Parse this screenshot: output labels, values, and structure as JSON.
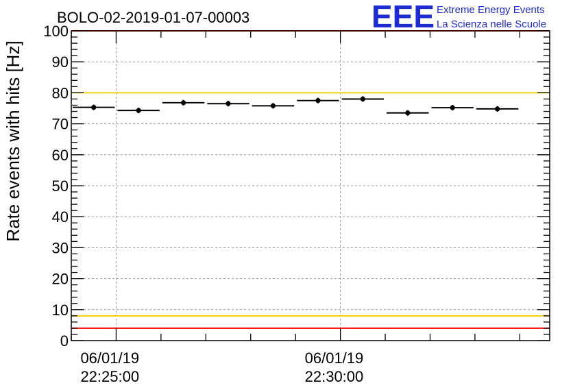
{
  "chart_data": {
    "type": "scatter",
    "title": "BOLO-02-2019-01-07-00003",
    "ylabel": "Rate events with hits [Hz]",
    "xlabel": "",
    "x_axis": {
      "unit": "seconds",
      "range": [
        0,
        640
      ],
      "major_ticks": [
        {
          "x": 60,
          "date_label": "06/01/19",
          "time_label": "22:25:00"
        },
        {
          "x": 360,
          "date_label": "06/01/19",
          "time_label": "22:30:00"
        }
      ],
      "minor_ticks": [
        0,
        60,
        120,
        180,
        240,
        300,
        360,
        420,
        480,
        540,
        600
      ]
    },
    "y_axis": {
      "range": [
        0,
        100
      ],
      "ticks": [
        0,
        10,
        20,
        30,
        40,
        50,
        60,
        70,
        80,
        90,
        100
      ]
    },
    "grid": true,
    "points": [
      {
        "x": 30,
        "y": 75.3,
        "xerr": 30,
        "yerr": 0.9
      },
      {
        "x": 90,
        "y": 74.3,
        "xerr": 30,
        "yerr": 0.9
      },
      {
        "x": 150,
        "y": 76.8,
        "xerr": 30,
        "yerr": 0.9
      },
      {
        "x": 210,
        "y": 76.5,
        "xerr": 30,
        "yerr": 0.9
      },
      {
        "x": 270,
        "y": 75.8,
        "xerr": 30,
        "yerr": 0.9
      },
      {
        "x": 330,
        "y": 77.5,
        "xerr": 30,
        "yerr": 0.9
      },
      {
        "x": 390,
        "y": 78.0,
        "xerr": 30,
        "yerr": 0.9
      },
      {
        "x": 450,
        "y": 73.5,
        "xerr": 30,
        "yerr": 0.9
      },
      {
        "x": 510,
        "y": 75.2,
        "xerr": 30,
        "yerr": 0.9
      },
      {
        "x": 570,
        "y": 74.8,
        "xerr": 30,
        "yerr": 0.9
      }
    ],
    "reference_lines": [
      {
        "y": 100,
        "color": "#ff0000"
      },
      {
        "y": 80,
        "color": "#f5d000"
      },
      {
        "y": 8,
        "color": "#f5d000"
      },
      {
        "y": 4,
        "color": "#ff0000"
      }
    ]
  },
  "logo": {
    "letters": "EEE",
    "line1": "Extreme Energy Events",
    "line2": "La Scienza nelle Scuole",
    "color": "#1f2bd6"
  }
}
